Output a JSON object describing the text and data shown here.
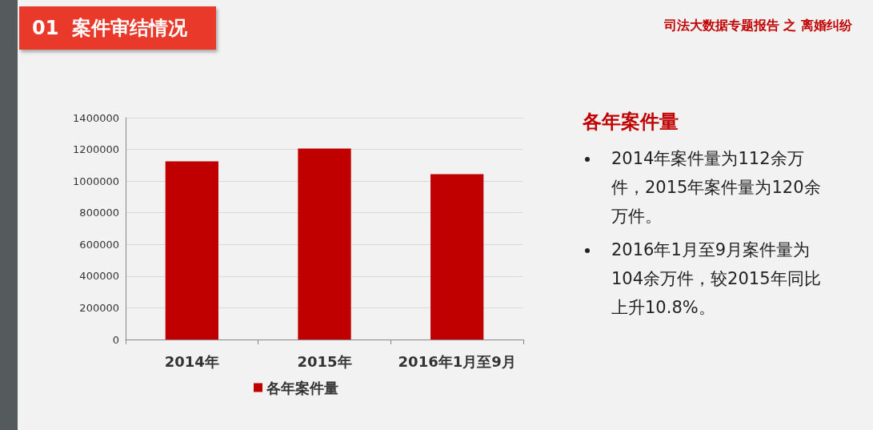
{
  "chart_data": {
    "type": "bar",
    "title": "01  案件审结情况",
    "subtitle": "司法大数据专题报告 之 离婚纠纷",
    "categories": [
      "2014年",
      "2015年",
      "2016年1月至9月"
    ],
    "series": [
      {
        "name": "各年案件量",
        "color": "#c00000",
        "values": [
          1124000,
          1205000,
          1044000
        ]
      }
    ],
    "ylim": [
      0,
      1400000
    ],
    "yticks": [
      0,
      200000,
      400000,
      600000,
      800000,
      1000000,
      1200000,
      1400000
    ],
    "grid": "y",
    "legend": "bottom",
    "annotations": [
      "各年案件量",
      "2014年案件量为112余万件，2015年案件量为120余万件。",
      "2016年1月至9月案件量为104余万件，较2015年同比上升10.8%。"
    ]
  }
}
